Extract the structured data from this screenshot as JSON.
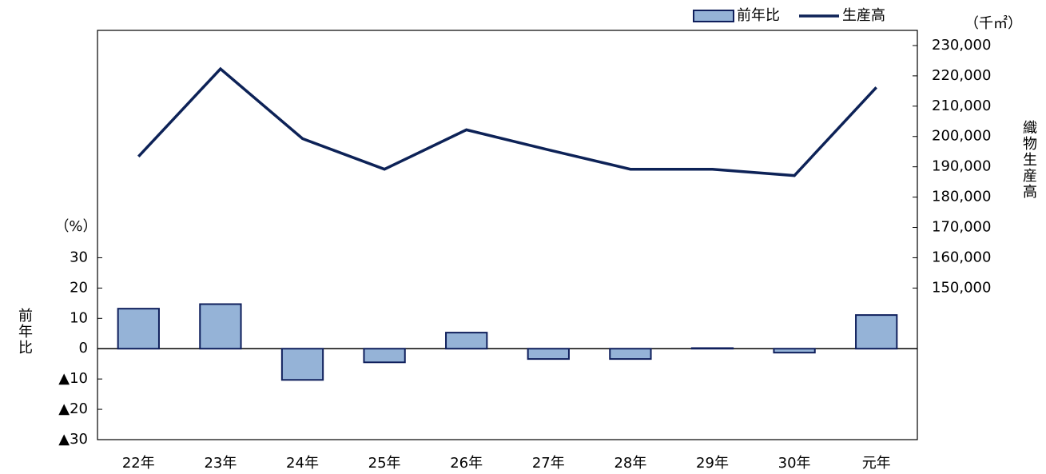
{
  "chart_data": {
    "type": "bar",
    "categories": [
      "22年",
      "23年",
      "24年",
      "25年",
      "26年",
      "27年",
      "28年",
      "29年",
      "30年",
      "元年"
    ],
    "series": [
      {
        "name": "前年比",
        "type": "bar",
        "color": "#95b3d7",
        "stroke": "#0f1f5c",
        "values": [
          13.2,
          14.7,
          -10.3,
          -4.5,
          5.3,
          -3.4,
          -3.4,
          0.2,
          -1.3,
          11.1
        ]
      },
      {
        "name": "生産高",
        "type": "line",
        "axis": "y2",
        "color": "#0d2257",
        "values": [
          193400,
          222300,
          199300,
          189200,
          202200,
          195600,
          189200,
          189200,
          187100,
          216200
        ]
      }
    ],
    "y_label": "前年比",
    "y_unit": "（%）",
    "y2_label": "織物生産高",
    "y2_unit": "（千㎡）",
    "ylim": [
      -30,
      105
    ],
    "yticks": [
      {
        "value": -30,
        "label": "▲30"
      },
      {
        "value": -20,
        "label": "▲20"
      },
      {
        "value": -10,
        "label": "▲10"
      },
      0,
      10,
      20,
      30
    ],
    "y2lim": [
      100000,
      235000
    ],
    "y2ticks": [
      {
        "value": 150000,
        "label": "150,000"
      },
      {
        "value": 160000,
        "label": "160,000"
      },
      {
        "value": 170000,
        "label": "170,000"
      },
      {
        "value": 180000,
        "label": "180,000"
      },
      {
        "value": 190000,
        "label": "190,000"
      },
      {
        "value": 200000,
        "label": "200,000"
      },
      {
        "value": 210000,
        "label": "210,000"
      },
      {
        "value": 220000,
        "label": "220,000"
      },
      {
        "value": 230000,
        "label": "230,000"
      }
    ],
    "legend": "top-right"
  }
}
